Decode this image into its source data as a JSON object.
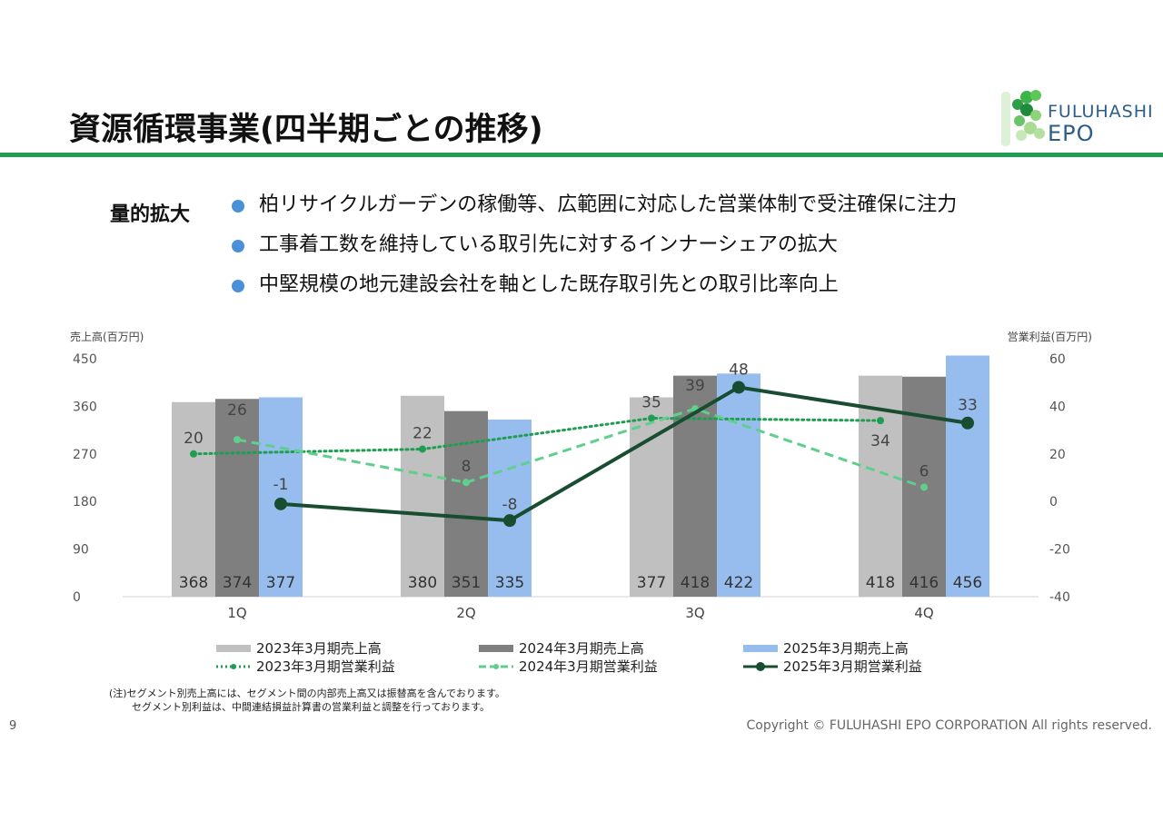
{
  "header": {
    "title": "資源循環事業(四半期ごとの推移)",
    "logo_line1": "FULUHASHI",
    "logo_line2": "EPO"
  },
  "summary": {
    "tagline": "量的拡大",
    "bullets": [
      "柏リサイクルガーデンの稼働等、広範囲に対応した営業体制で受注確保に注力",
      "工事着工数を維持している取引先に対するインナーシェアの拡大",
      "中堅規模の地元建設会社を軸とした既存取引先との取引比率向上"
    ]
  },
  "colors": {
    "bar2023": "#c0c0c0",
    "bar2024": "#7f7f7f",
    "bar2025": "#97bdee",
    "line2023": "#1f9e52",
    "line2024": "#5fcf8c",
    "line2025": "#184d31",
    "rule": "#1f9e52",
    "bullet": "#4a90d9"
  },
  "chart_data": {
    "type": "bar",
    "categories": [
      "1Q",
      "2Q",
      "3Q",
      "4Q"
    ],
    "ylabel": "売上高(百万円)",
    "y2label": "営業利益(百万円)",
    "ylim": [
      0,
      450
    ],
    "yticks": [
      0,
      90,
      180,
      270,
      360,
      450
    ],
    "y2lim": [
      -40,
      60
    ],
    "y2ticks": [
      -40,
      -20,
      0,
      20,
      40,
      60
    ],
    "series": [
      {
        "name": "2023年3月期売上高",
        "kind": "bar",
        "values": [
          368,
          380,
          377,
          418
        ]
      },
      {
        "name": "2024年3月期売上高",
        "kind": "bar",
        "values": [
          374,
          351,
          418,
          416
        ]
      },
      {
        "name": "2025年3月期売上高",
        "kind": "bar",
        "values": [
          377,
          335,
          422,
          456
        ]
      },
      {
        "name": "2023年3月期営業利益",
        "kind": "line",
        "style": "dotted",
        "axis": "right",
        "values": [
          20,
          22,
          35,
          34
        ]
      },
      {
        "name": "2024年3月期営業利益",
        "kind": "line",
        "style": "dashed",
        "axis": "right",
        "values": [
          26,
          8,
          39,
          6
        ]
      },
      {
        "name": "2025年3月期営業利益",
        "kind": "line",
        "style": "solid",
        "axis": "right",
        "values": [
          -1,
          -8,
          48,
          33
        ]
      }
    ],
    "legend": "bottom"
  },
  "footer": {
    "note1": "(注)セグメント別売上高には、セグメント間の内部売上高又は振替高を含んでおります。",
    "note2": "セグメント別利益は、中間連結損益計算書の営業利益と調整を行っております。",
    "page": "9",
    "copyright": "Copyright © FULUHASHI EPO CORPORATION All rights reserved."
  }
}
